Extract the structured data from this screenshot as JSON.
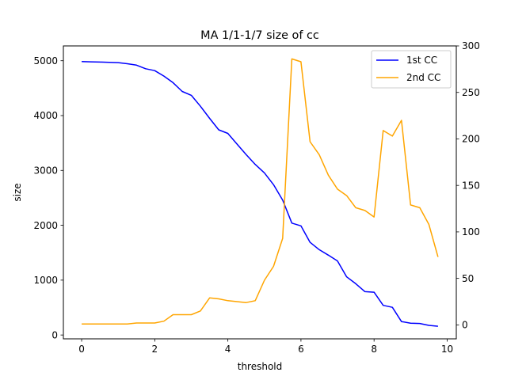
{
  "chart_data": {
    "type": "line",
    "title": "MA 1/1-1/7 size of cc",
    "xlabel": "threshold",
    "ylabel": "size",
    "y2label": "",
    "xlim": [
      -0.5,
      10.25
    ],
    "ylim": [
      -70,
      5270
    ],
    "y2lim": [
      -15,
      300
    ],
    "xticks": [
      0,
      2,
      4,
      6,
      8,
      10
    ],
    "yticks": [
      0,
      1000,
      2000,
      3000,
      4000,
      5000
    ],
    "y2ticks": [
      0,
      50,
      100,
      150,
      200,
      250,
      300
    ],
    "legend_position": "top-right",
    "series": [
      {
        "name": "1st CC",
        "axis": "left",
        "color": "#0000ff",
        "x": [
          0,
          0.25,
          0.5,
          0.75,
          1.0,
          1.25,
          1.5,
          1.75,
          2.0,
          2.25,
          2.5,
          2.75,
          3.0,
          3.25,
          3.5,
          3.75,
          4.0,
          4.25,
          4.5,
          4.75,
          5.0,
          5.25,
          5.5,
          5.75,
          6.0,
          6.25,
          6.5,
          6.75,
          7.0,
          7.25,
          7.5,
          7.75,
          8.0,
          8.25,
          8.5,
          8.75,
          9.0,
          9.25,
          9.5,
          9.75
        ],
        "values": [
          4985,
          4980,
          4975,
          4970,
          4965,
          4945,
          4920,
          4855,
          4820,
          4720,
          4600,
          4440,
          4370,
          4170,
          3950,
          3740,
          3675,
          3480,
          3290,
          3110,
          2955,
          2740,
          2460,
          2040,
          1990,
          1690,
          1555,
          1455,
          1350,
          1060,
          935,
          790,
          780,
          540,
          505,
          245,
          215,
          210,
          175,
          160
        ]
      },
      {
        "name": "2nd CC",
        "axis": "right",
        "color": "#ffa500",
        "x": [
          0,
          0.25,
          0.5,
          0.75,
          1.0,
          1.25,
          1.5,
          1.75,
          2.0,
          2.25,
          2.5,
          2.75,
          3.0,
          3.25,
          3.5,
          3.75,
          4.0,
          4.25,
          4.5,
          4.75,
          5.0,
          5.25,
          5.5,
          5.75,
          6.0,
          6.25,
          6.5,
          6.75,
          7.0,
          7.25,
          7.5,
          7.75,
          8.0,
          8.25,
          8.5,
          8.75,
          9.0,
          9.25,
          9.5,
          9.75
        ],
        "values": [
          1,
          1,
          1,
          1,
          1,
          1,
          2,
          2,
          2,
          4,
          11,
          11,
          11,
          15,
          29,
          28,
          26,
          25,
          24,
          26,
          48,
          63,
          93,
          286,
          283,
          197,
          183,
          161,
          146,
          139,
          126,
          123,
          116,
          209,
          203,
          220,
          129,
          126,
          108,
          73
        ]
      }
    ]
  }
}
